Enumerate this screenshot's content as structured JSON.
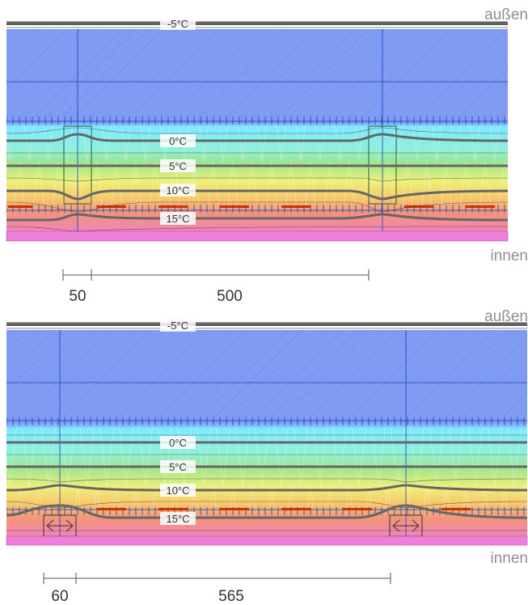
{
  "colors": {
    "cold": "#7f9bf2",
    "cyan": "#7fefff",
    "green": "#8fe29b",
    "yellow": "#f3f07a",
    "orange": "#f4bf6c",
    "warm": "#f07fa0",
    "magenta": "#ef7fdb",
    "isotherm": "#666666",
    "structure": "#1c3cbf",
    "timber": "#cc3300"
  },
  "detail_top": {
    "outside_label": "außen",
    "inside_label": "innen",
    "isotherms": [
      "-5°C",
      "0°C",
      "5°C",
      "10°C",
      "15°C"
    ],
    "dimensions": [
      "50",
      "500"
    ]
  },
  "detail_bottom": {
    "outside_label": "außen",
    "inside_label": "innen",
    "isotherms": [
      "-5°C",
      "0°C",
      "5°C",
      "10°C",
      "15°C"
    ],
    "dimensions": [
      "60",
      "565"
    ]
  }
}
